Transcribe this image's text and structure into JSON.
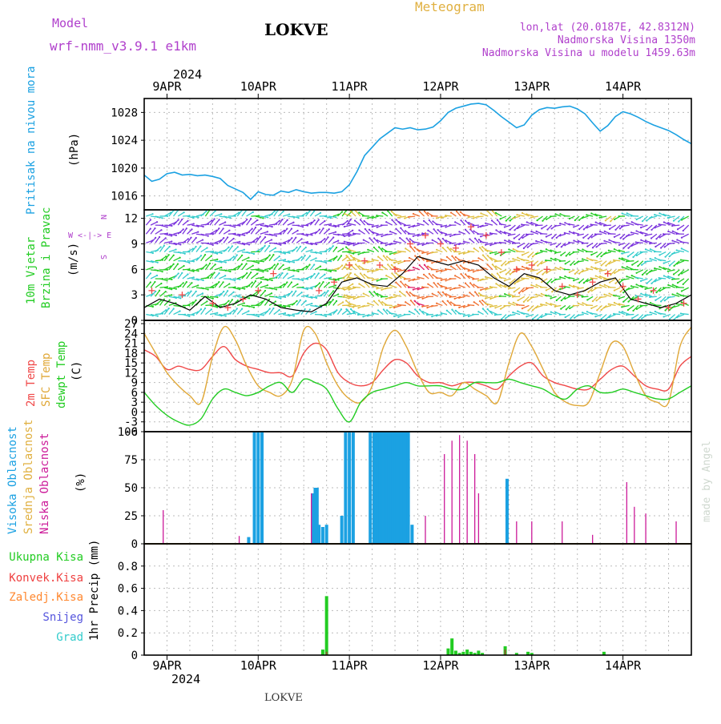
{
  "header": {
    "model_label": "Model",
    "model_name": "wrf-nmm_v3.9.1  e1km",
    "station": "LOKVE",
    "title": "Meteogram",
    "coords": "lon,lat (20.0187E, 42.8312N)",
    "elevation": "Nadmorska Visina 1350m",
    "model_elevation": "Nadmorska Visina u modelu 1459.63m"
  },
  "footer": {
    "station": "LOKVE",
    "watermark": "made by Angel"
  },
  "colors": {
    "pressure": "#1ba1e2",
    "temp2m": "#f04848",
    "sfc_temp": "#e0a838",
    "dewpoint": "#22cc22",
    "high_cloud": "#1ba1e2",
    "low_cloud": "#cc1a99",
    "mid_cloud": "#e0b040",
    "total_precip": "#22cc22",
    "conv_precip": "#ef4040",
    "frz_precip": "#ff8830",
    "snow": "#5555dd",
    "hail": "#33cccc",
    "wind_speed": "#000000",
    "gust": "#f04848",
    "label_purple": "#b040cc"
  },
  "time_axis": {
    "year": "2024",
    "days": [
      "9APR",
      "10APR",
      "11APR",
      "12APR",
      "13APR",
      "14APR"
    ],
    "range_hours": [
      0,
      144
    ]
  },
  "labels": {
    "pressure_name": "Pritisak na nivou mora",
    "pressure_unit": "(hPa)",
    "wind_name": "10m Vjetar",
    "wind_name2": "Brzina i Pravac",
    "wind_unit": "(m/s)",
    "compass_n": "N",
    "compass_s": "S",
    "compass_e": "E",
    "compass_w": "W",
    "compass_row": "W  <-|->  E",
    "temp_2m": "2m Temp",
    "temp_sfc": "SFC Temp",
    "temp_dew": "dewpt Temp",
    "temp_unit": "(C)",
    "cloud_high": "Visoka Oblacnost",
    "cloud_mid": "Srednja Oblacnost",
    "cloud_low": "Niska Oblacnost",
    "cloud_unit": "(%)",
    "precip_total": "Ukupna Kisa",
    "precip_conv": "Konvek.Kisa",
    "precip_frz": "Zaledj.Kisa",
    "precip_snow": "Snijeg",
    "precip_hail": "Grad",
    "precip_axis": "1hr Precip (mm)"
  },
  "chart_data": [
    {
      "type": "line",
      "panel": "pressure",
      "ylabel": "Pritisak na nivou mora (hPa)",
      "ylim": [
        1014,
        1030
      ],
      "yticks": [
        1016,
        1020,
        1024,
        1028
      ],
      "grid": true,
      "series": [
        {
          "name": "Pritisak na nivou mora",
          "x": [
            0,
            2,
            4,
            6,
            8,
            10,
            12,
            14,
            16,
            18,
            20,
            22,
            24,
            26,
            28,
            30,
            32,
            34,
            36,
            38,
            40,
            42,
            44,
            46,
            48,
            50,
            52,
            54,
            56,
            58,
            60,
            62,
            64,
            66,
            68,
            70,
            72,
            74,
            76,
            78,
            80,
            82,
            84,
            86,
            88,
            90,
            92,
            94,
            96,
            98,
            100,
            102,
            104,
            106,
            108,
            110,
            112,
            114,
            116,
            118,
            120,
            122,
            124,
            126,
            128,
            130,
            132,
            134,
            136,
            138,
            140,
            142,
            144
          ],
          "y": [
            1019,
            1018.1,
            1018.4,
            1019.2,
            1019.4,
            1019,
            1019.1,
            1018.9,
            1019,
            1018.8,
            1018.5,
            1017.5,
            1017,
            1016.5,
            1015.5,
            1016.6,
            1016.2,
            1016.1,
            1016.7,
            1016.5,
            1016.9,
            1016.6,
            1016.4,
            1016.5,
            1016.5,
            1016.4,
            1016.6,
            1017.6,
            1019.5,
            1021.8,
            1023,
            1024.2,
            1025,
            1025.8,
            1025.6,
            1025.8,
            1025.5,
            1025.6,
            1025.9,
            1026.8,
            1028,
            1028.6,
            1028.9,
            1029.2,
            1029.3,
            1029.1,
            1028.3,
            1027.4,
            1026.6,
            1025.8,
            1026.2,
            1027.6,
            1028.4,
            1028.7,
            1028.6,
            1028.8,
            1028.9,
            1028.5,
            1027.8,
            1026.5,
            1025.3,
            1026.1,
            1027.4,
            1028.1,
            1027.8,
            1027.3,
            1026.7,
            1026.2,
            1025.8,
            1025.4,
            1024.8,
            1024.1,
            1023.5
          ]
        }
      ]
    },
    {
      "type": "line",
      "panel": "wind",
      "ylabel": "10m Vjetar Brzina i Pravac (m/s)",
      "ylim": [
        0,
        13
      ],
      "yticks": [
        0,
        3,
        6,
        9,
        12
      ],
      "grid": true,
      "series": [
        {
          "x": [
            0,
            4,
            8,
            12,
            16,
            20,
            24,
            28,
            32,
            36,
            40,
            44,
            48,
            52,
            56,
            60,
            64,
            68,
            72,
            76,
            80,
            84,
            88,
            92,
            96,
            100,
            104,
            108,
            112,
            116,
            120,
            124,
            128,
            132,
            136,
            140,
            144
          ],
          "y": [
            1.5,
            2.5,
            2,
            1.2,
            2.8,
            1.5,
            2,
            3,
            2.5,
            1.5,
            1.2,
            1,
            2,
            4.5,
            5,
            4.2,
            4,
            5.5,
            7.5,
            7,
            6.5,
            7,
            6.5,
            5,
            4,
            5.5,
            5,
            3.5,
            3,
            3.5,
            4.5,
            5,
            2.5,
            2,
            1.5,
            2,
            3
          ]
        },
        {
          "x": [
            2,
            10,
            18,
            22,
            26,
            30,
            34,
            46,
            50,
            54,
            58,
            62,
            66,
            70,
            74,
            78,
            82,
            86,
            90,
            94,
            98,
            102,
            106,
            110,
            114,
            118,
            122,
            126,
            130,
            134,
            138,
            142
          ],
          "y": [
            3.5,
            3,
            2,
            1.5,
            2.5,
            3.5,
            5.5,
            3.5,
            4.5,
            6.5,
            7,
            6.5,
            6,
            9,
            10,
            9,
            8.5,
            11,
            10,
            8,
            6,
            6.5,
            6,
            4,
            3,
            4.5,
            5.5,
            4,
            2.5,
            3.5,
            1.5,
            2
          ]
        }
      ]
    },
    {
      "type": "line",
      "panel": "temperature",
      "ylabel": "Temp (C)",
      "ylim": [
        -6,
        28
      ],
      "yticks": [
        -6,
        -3,
        0,
        3,
        6,
        9,
        12,
        15,
        18,
        21,
        24,
        27
      ],
      "grid": true,
      "series": [
        {
          "name": "2m Temp",
          "x": [
            0,
            3,
            6,
            9,
            12,
            15,
            18,
            21,
            24,
            27,
            30,
            33,
            36,
            39,
            42,
            45,
            48,
            51,
            54,
            57,
            60,
            63,
            66,
            69,
            72,
            75,
            78,
            81,
            84,
            87,
            90,
            93,
            96,
            99,
            102,
            105,
            108,
            111,
            114,
            117,
            120,
            123,
            126,
            129,
            132,
            135,
            138,
            141,
            144
          ],
          "y": [
            19,
            17,
            13,
            14,
            13,
            13,
            17,
            20,
            16,
            14,
            13,
            12,
            12,
            11,
            18,
            21,
            19,
            12,
            9,
            8,
            9,
            13,
            16,
            15,
            11,
            9,
            9,
            8,
            9,
            9,
            8,
            7,
            11,
            14,
            15,
            11,
            9,
            8,
            7,
            7,
            10,
            13,
            14,
            11,
            8,
            7,
            7,
            14,
            17
          ]
        },
        {
          "name": "SFC Temp",
          "x": [
            0,
            3,
            6,
            9,
            12,
            15,
            18,
            21,
            24,
            27,
            30,
            33,
            36,
            39,
            42,
            45,
            48,
            51,
            54,
            57,
            60,
            63,
            66,
            69,
            72,
            75,
            78,
            81,
            84,
            87,
            90,
            93,
            96,
            99,
            102,
            105,
            108,
            111,
            114,
            117,
            120,
            123,
            126,
            129,
            132,
            135,
            138,
            141,
            144
          ],
          "y": [
            24,
            18,
            12,
            8,
            5,
            3,
            17,
            26,
            22,
            14,
            8,
            6,
            5,
            10,
            25,
            24,
            15,
            8,
            4,
            3,
            8,
            20,
            25,
            20,
            12,
            6,
            6,
            5,
            9,
            7,
            5,
            3,
            15,
            24,
            20,
            13,
            6,
            3,
            2,
            3,
            12,
            21,
            20,
            12,
            5,
            3,
            3,
            20,
            26
          ]
        },
        {
          "name": "dewpt Temp",
          "x": [
            0,
            3,
            6,
            9,
            12,
            15,
            18,
            21,
            24,
            27,
            30,
            33,
            36,
            39,
            42,
            45,
            48,
            51,
            54,
            57,
            60,
            63,
            66,
            69,
            72,
            75,
            78,
            81,
            84,
            87,
            90,
            93,
            96,
            99,
            102,
            105,
            108,
            111,
            114,
            117,
            120,
            123,
            126,
            129,
            132,
            135,
            138,
            141,
            144
          ],
          "y": [
            6,
            2,
            -1,
            -3,
            -4,
            -2,
            4,
            7,
            6,
            5,
            6,
            8,
            9,
            6,
            10,
            9,
            7,
            1,
            -3,
            3,
            6,
            7,
            8,
            9,
            8,
            8,
            8,
            7,
            7,
            9,
            9,
            9,
            10,
            9,
            8,
            7,
            5,
            4,
            7,
            8,
            6,
            6,
            7,
            6,
            5,
            4,
            4,
            6,
            8
          ]
        }
      ]
    },
    {
      "type": "bar",
      "panel": "cloud",
      "ylabel": "Oblacnost (%)",
      "ylim": [
        0,
        100
      ],
      "yticks": [
        0,
        25,
        50,
        75,
        100
      ],
      "grid": true,
      "series": [
        {
          "name": "Visoka Oblacnost",
          "x": [
            27.5,
            29,
            30,
            31,
            44.5,
            45,
            45.5,
            46,
            47,
            48,
            52,
            53,
            54,
            55,
            59.5,
            60.5,
            61,
            61.5,
            62,
            62.5,
            63,
            63.5,
            64,
            64.5,
            65,
            65.5,
            66,
            66.5,
            67,
            67.5,
            68,
            68.5,
            69,
            69.5,
            70.5,
            95.5
          ],
          "y": [
            6,
            100,
            100,
            100,
            45,
            50,
            50,
            17,
            15,
            17,
            25,
            100,
            100,
            100,
            100,
            100,
            100,
            100,
            100,
            100,
            100,
            100,
            100,
            100,
            100,
            100,
            100,
            100,
            100,
            100,
            100,
            100,
            100,
            100,
            17,
            58
          ]
        },
        {
          "name": "Niska Oblacnost",
          "x": [
            5,
            25,
            44,
            74,
            79,
            81,
            83,
            85,
            87,
            88,
            98,
            102,
            110,
            118,
            127,
            129,
            132,
            140
          ],
          "y": [
            30,
            7,
            45,
            25,
            80,
            92,
            97,
            92,
            80,
            45,
            20,
            20,
            20,
            8,
            55,
            33,
            27,
            20
          ]
        }
      ]
    },
    {
      "type": "bar",
      "panel": "precip",
      "ylabel": "1hr Precip (mm)",
      "ylim": [
        0,
        1
      ],
      "yticks": [
        0,
        0.2,
        0.4,
        0.6,
        0.8
      ],
      "grid": true,
      "series": [
        {
          "name": "Ukupna Kisa",
          "x": [
            47,
            48,
            80,
            81,
            82,
            83,
            84,
            85,
            86,
            87,
            88,
            89,
            95,
            98,
            101,
            102,
            121
          ],
          "y": [
            0.05,
            0.53,
            0.06,
            0.15,
            0.04,
            0.02,
            0.03,
            0.05,
            0.03,
            0.02,
            0.04,
            0.02,
            0.08,
            0.02,
            0.03,
            0.02,
            0.03
          ]
        },
        {
          "name": "Konvek.Kisa",
          "x": [
            48,
            95
          ],
          "y": [
            0.03,
            0.05
          ]
        }
      ]
    }
  ]
}
